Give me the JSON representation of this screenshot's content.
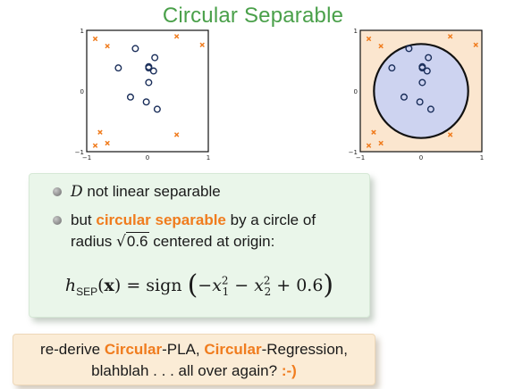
{
  "title": "Circular Separable",
  "chart_data": [
    {
      "type": "scatter",
      "xlim": [
        -1,
        1
      ],
      "ylim": [
        -1,
        1
      ],
      "x_ticks": [
        "−1",
        "0",
        "1"
      ],
      "y_ticks": [
        "1",
        "0",
        "−1"
      ],
      "series": [
        {
          "marker": "o",
          "points": [
            [
              -0.2,
              0.7
            ],
            [
              0.12,
              0.55
            ],
            [
              -0.48,
              0.38
            ],
            [
              0.02,
              0.38
            ],
            [
              0.1,
              0.33
            ],
            [
              0.02,
              0.14
            ],
            [
              -0.28,
              -0.1
            ],
            [
              -0.02,
              -0.18
            ],
            [
              0.16,
              -0.3
            ],
            [
              0.02,
              0.4
            ]
          ]
        },
        {
          "marker": "x",
          "points": [
            [
              -0.86,
              0.86
            ],
            [
              -0.66,
              0.74
            ],
            [
              0.48,
              0.9
            ],
            [
              0.9,
              0.76
            ],
            [
              -0.78,
              -0.68
            ],
            [
              -0.66,
              -0.86
            ],
            [
              -0.86,
              -0.9
            ],
            [
              0.48,
              -0.72
            ]
          ]
        }
      ],
      "circle": null
    },
    {
      "type": "scatter",
      "xlim": [
        -1,
        1
      ],
      "ylim": [
        -1,
        1
      ],
      "x_ticks": [
        "−1",
        "0",
        "1"
      ],
      "y_ticks": [
        "1",
        "0",
        "−1"
      ],
      "series": [
        {
          "marker": "o",
          "points": [
            [
              -0.2,
              0.7
            ],
            [
              0.12,
              0.55
            ],
            [
              -0.48,
              0.38
            ],
            [
              0.02,
              0.38
            ],
            [
              0.1,
              0.33
            ],
            [
              0.02,
              0.14
            ],
            [
              -0.28,
              -0.1
            ],
            [
              -0.02,
              -0.18
            ],
            [
              0.16,
              -0.3
            ],
            [
              0.02,
              0.4
            ]
          ]
        },
        {
          "marker": "x",
          "points": [
            [
              -0.86,
              0.86
            ],
            [
              -0.66,
              0.74
            ],
            [
              0.48,
              0.9
            ],
            [
              0.9,
              0.76
            ],
            [
              -0.78,
              -0.68
            ],
            [
              -0.66,
              -0.86
            ],
            [
              -0.86,
              -0.9
            ],
            [
              0.48,
              -0.72
            ]
          ]
        }
      ],
      "circle": {
        "center": [
          0,
          0
        ],
        "radius": 0.775,
        "inside_color": "#cdd3f0",
        "outside_color": "#fbe6cf"
      }
    }
  ],
  "colors": {
    "circle_marker": "#1a2e5a",
    "x_marker": "#f07c1e",
    "title": "#4aa04a",
    "accent": "#f07c1e"
  },
  "box1": {
    "bullet1": {
      "symbol": "D",
      "text": " not linear separable"
    },
    "bullet2": {
      "pre": "but ",
      "highlight": "circular separable",
      "post": " by a circle of"
    },
    "line3": {
      "pre": "radius ",
      "sqrt_value": "0.6",
      "post": " centered at origin:"
    },
    "formula": {
      "h": "h",
      "sub": "SEP",
      "arg": "x",
      "equals": " = sign",
      "body": "−x",
      "sub1": "1",
      "sup1": "2",
      "minus": " − x",
      "sub2": "2",
      "sup2": "2",
      "tail": " + 0.6"
    }
  },
  "box2": {
    "line1": {
      "pre": "re-derive ",
      "w1": "Circular",
      "m1": "-PLA, ",
      "w2": "Circular",
      "m2": "-Regression,"
    },
    "line2": {
      "text": "blahblah . . . all over again? ",
      "smiley": ":-)"
    }
  }
}
